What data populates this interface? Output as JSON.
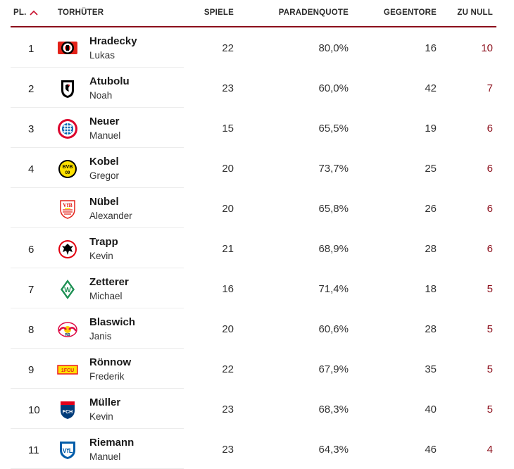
{
  "header": {
    "rank": "PL.",
    "name": "TORHÜTER",
    "games": "SPIELE",
    "save_rate": "PARADENQUOTE",
    "goals_against": "GEGENTORE",
    "clean_sheets": "ZU NULL"
  },
  "rows": [
    {
      "rank": "1",
      "last": "Hradecky",
      "first": "Lukas",
      "club_icon": "leverkusen-crest-icon",
      "games": "22",
      "save_rate": "80,0%",
      "goals_against": "16",
      "clean_sheets": "10"
    },
    {
      "rank": "2",
      "last": "Atubolu",
      "first": "Noah",
      "club_icon": "freiburg-crest-icon",
      "games": "23",
      "save_rate": "60,0%",
      "goals_against": "42",
      "clean_sheets": "7"
    },
    {
      "rank": "3",
      "last": "Neuer",
      "first": "Manuel",
      "club_icon": "bayern-crest-icon",
      "games": "15",
      "save_rate": "65,5%",
      "goals_against": "19",
      "clean_sheets": "6"
    },
    {
      "rank": "4",
      "last": "Kobel",
      "first": "Gregor",
      "club_icon": "dortmund-crest-icon",
      "games": "20",
      "save_rate": "73,7%",
      "goals_against": "25",
      "clean_sheets": "6"
    },
    {
      "rank": "",
      "last": "Nübel",
      "first": "Alexander",
      "club_icon": "stuttgart-crest-icon",
      "games": "20",
      "save_rate": "65,8%",
      "goals_against": "26",
      "clean_sheets": "6"
    },
    {
      "rank": "6",
      "last": "Trapp",
      "first": "Kevin",
      "club_icon": "frankfurt-crest-icon",
      "games": "21",
      "save_rate": "68,9%",
      "goals_against": "28",
      "clean_sheets": "6"
    },
    {
      "rank": "7",
      "last": "Zetterer",
      "first": "Michael",
      "club_icon": "bremen-crest-icon",
      "games": "16",
      "save_rate": "71,4%",
      "goals_against": "18",
      "clean_sheets": "5"
    },
    {
      "rank": "8",
      "last": "Blaswich",
      "first": "Janis",
      "club_icon": "leipzig-crest-icon",
      "games": "20",
      "save_rate": "60,6%",
      "goals_against": "28",
      "clean_sheets": "5"
    },
    {
      "rank": "9",
      "last": "Rönnow",
      "first": "Frederik",
      "club_icon": "union-berlin-crest-icon",
      "games": "22",
      "save_rate": "67,9%",
      "goals_against": "35",
      "clean_sheets": "5"
    },
    {
      "rank": "10",
      "last": "Müller",
      "first": "Kevin",
      "club_icon": "heidenheim-crest-icon",
      "games": "23",
      "save_rate": "68,3%",
      "goals_against": "40",
      "clean_sheets": "5"
    },
    {
      "rank": "11",
      "last": "Riemann",
      "first": "Manuel",
      "club_icon": "bochum-crest-icon",
      "games": "23",
      "save_rate": "64,3%",
      "goals_against": "46",
      "clean_sheets": "4"
    }
  ],
  "colors": {
    "accent": "#8c0f1b",
    "sort_chevron": "#c8102e",
    "row_divider": "#ececec"
  }
}
